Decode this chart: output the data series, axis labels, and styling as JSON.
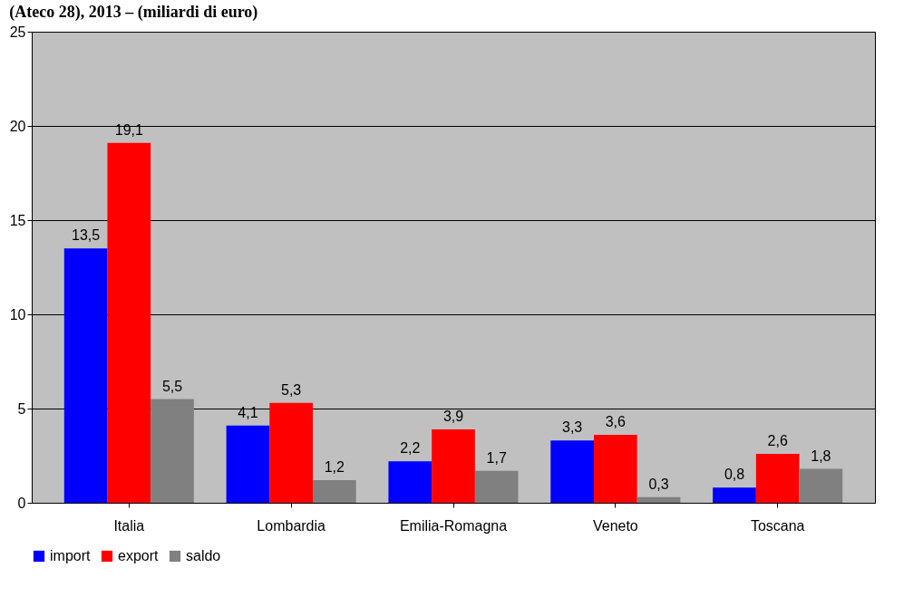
{
  "chart_data": {
    "type": "bar",
    "title": "(Ateco 28), 2013 – (miliardi di euro)",
    "categories": [
      "Italia",
      "Lombardia",
      "Emilia-Romagna",
      "Veneto",
      "Toscana"
    ],
    "series": [
      {
        "name": "import",
        "color": "#0000ff",
        "values": [
          13.5,
          4.1,
          2.2,
          3.3,
          0.8
        ],
        "value_labels": [
          "13,5",
          "4,1",
          "2,2",
          "3,3",
          "0,8"
        ]
      },
      {
        "name": "export",
        "color": "#ff0000",
        "values": [
          19.1,
          5.3,
          3.9,
          3.6,
          2.6
        ],
        "value_labels": [
          "19,1",
          "5,3",
          "3,9",
          "3,6",
          "2,6"
        ]
      },
      {
        "name": "saldo",
        "color": "#808080",
        "values": [
          5.5,
          1.2,
          1.7,
          0.3,
          1.8
        ],
        "value_labels": [
          "5,5",
          "1,2",
          "1,7",
          "0,3",
          "1,8"
        ]
      }
    ],
    "ylim": [
      0,
      25
    ],
    "yticks": [
      0,
      5,
      10,
      15,
      20,
      25
    ],
    "grid": "y",
    "legend": "bottom"
  }
}
